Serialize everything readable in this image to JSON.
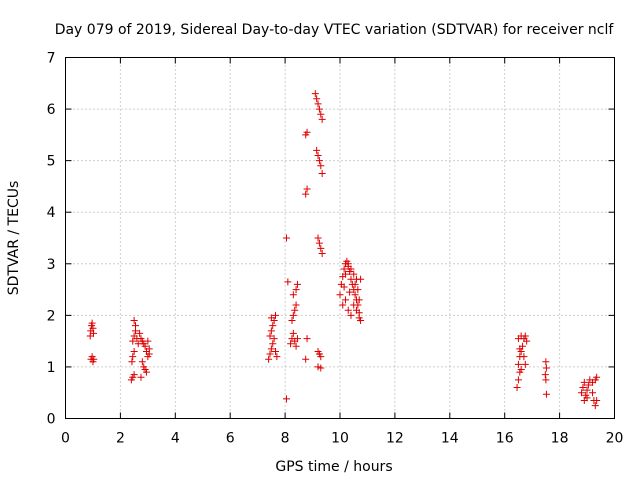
{
  "chart_data": {
    "type": "scatter",
    "title": "Day 079 of 2019, Sidereal Day-to-day VTEC variation (SDTVAR) for receiver nclf",
    "xlabel": "GPS time / hours",
    "ylabel": "SDTVAR / TECUs",
    "xlim": [
      0,
      20
    ],
    "ylim": [
      0,
      7
    ],
    "xticks": [
      "0",
      "2",
      "4",
      "6",
      "8",
      "10",
      "12",
      "14",
      "16",
      "18",
      "20"
    ],
    "yticks": [
      "0",
      "1",
      "2",
      "3",
      "4",
      "5",
      "6",
      "7"
    ],
    "grid": true,
    "marker": "+",
    "color": "#dd0000",
    "series": [
      {
        "name": "SDTVAR",
        "points": [
          [
            0.9,
            1.6
          ],
          [
            0.92,
            1.7
          ],
          [
            0.95,
            1.8
          ],
          [
            0.97,
            1.85
          ],
          [
            1.0,
            1.75
          ],
          [
            1.02,
            1.65
          ],
          [
            0.93,
            1.15
          ],
          [
            0.97,
            1.2
          ],
          [
            1.0,
            1.1
          ],
          [
            1.03,
            1.15
          ],
          [
            2.4,
            0.75
          ],
          [
            2.45,
            0.8
          ],
          [
            2.5,
            0.85
          ],
          [
            2.42,
            1.1
          ],
          [
            2.45,
            1.2
          ],
          [
            2.5,
            1.3
          ],
          [
            2.45,
            1.5
          ],
          [
            2.5,
            1.6
          ],
          [
            2.55,
            1.7
          ],
          [
            2.5,
            1.9
          ],
          [
            2.55,
            1.8
          ],
          [
            2.6,
            1.55
          ],
          [
            2.65,
            1.45
          ],
          [
            2.7,
            1.65
          ],
          [
            2.75,
            1.55
          ],
          [
            2.8,
            1.5
          ],
          [
            2.85,
            1.45
          ],
          [
            2.9,
            1.4
          ],
          [
            2.95,
            1.3
          ],
          [
            3.0,
            1.2
          ],
          [
            3.05,
            1.35
          ],
          [
            2.8,
            1.1
          ],
          [
            2.85,
            1.0
          ],
          [
            2.9,
            0.95
          ],
          [
            2.95,
            0.9
          ],
          [
            2.75,
            0.8
          ],
          [
            3.0,
            1.5
          ],
          [
            3.05,
            1.25
          ],
          [
            7.4,
            1.15
          ],
          [
            7.45,
            1.25
          ],
          [
            7.5,
            1.35
          ],
          [
            7.55,
            1.45
          ],
          [
            7.45,
            1.6
          ],
          [
            7.5,
            1.7
          ],
          [
            7.55,
            1.8
          ],
          [
            7.6,
            1.9
          ],
          [
            7.65,
            2.0
          ],
          [
            7.5,
            1.95
          ],
          [
            7.6,
            1.55
          ],
          [
            7.65,
            1.3
          ],
          [
            7.7,
            1.2
          ],
          [
            8.05,
            0.38
          ],
          [
            8.1,
            2.65
          ],
          [
            8.05,
            3.5
          ],
          [
            8.2,
            1.45
          ],
          [
            8.25,
            1.55
          ],
          [
            8.3,
            1.65
          ],
          [
            8.35,
            1.5
          ],
          [
            8.4,
            1.4
          ],
          [
            8.45,
            1.55
          ],
          [
            8.25,
            1.9
          ],
          [
            8.3,
            2.0
          ],
          [
            8.35,
            2.1
          ],
          [
            8.4,
            2.2
          ],
          [
            8.3,
            2.4
          ],
          [
            8.4,
            2.5
          ],
          [
            8.45,
            2.6
          ],
          [
            8.75,
            1.15
          ],
          [
            8.8,
            1.55
          ],
          [
            8.75,
            4.35
          ],
          [
            8.8,
            4.45
          ],
          [
            8.75,
            5.5
          ],
          [
            8.8,
            5.55
          ],
          [
            9.1,
            6.3
          ],
          [
            9.15,
            6.2
          ],
          [
            9.2,
            6.1
          ],
          [
            9.25,
            6.0
          ],
          [
            9.3,
            5.9
          ],
          [
            9.35,
            5.8
          ],
          [
            9.15,
            5.2
          ],
          [
            9.2,
            5.1
          ],
          [
            9.25,
            5.0
          ],
          [
            9.3,
            4.9
          ],
          [
            9.35,
            4.75
          ],
          [
            9.2,
            3.5
          ],
          [
            9.25,
            3.4
          ],
          [
            9.3,
            3.3
          ],
          [
            9.35,
            3.2
          ],
          [
            9.2,
            1.3
          ],
          [
            9.25,
            1.25
          ],
          [
            9.3,
            1.2
          ],
          [
            9.2,
            1.0
          ],
          [
            9.3,
            0.98
          ],
          [
            10.0,
            2.4
          ],
          [
            10.05,
            2.6
          ],
          [
            10.1,
            2.75
          ],
          [
            10.15,
            2.9
          ],
          [
            10.2,
            3.0
          ],
          [
            10.25,
            3.05
          ],
          [
            10.3,
            2.95
          ],
          [
            10.35,
            2.85
          ],
          [
            10.4,
            2.7
          ],
          [
            10.45,
            2.6
          ],
          [
            10.5,
            2.5
          ],
          [
            10.55,
            2.4
          ],
          [
            10.6,
            2.3
          ],
          [
            10.65,
            2.2
          ],
          [
            10.7,
            2.05
          ],
          [
            10.75,
            1.9
          ],
          [
            10.1,
            2.2
          ],
          [
            10.2,
            2.3
          ],
          [
            10.3,
            2.1
          ],
          [
            10.4,
            2.0
          ],
          [
            10.5,
            2.2
          ],
          [
            10.6,
            2.1
          ],
          [
            10.7,
            1.95
          ],
          [
            10.2,
            2.8
          ],
          [
            10.3,
            3.0
          ],
          [
            10.4,
            2.9
          ],
          [
            10.5,
            2.8
          ],
          [
            10.6,
            2.7
          ],
          [
            10.65,
            2.5
          ],
          [
            10.7,
            2.3
          ],
          [
            10.15,
            2.55
          ],
          [
            10.35,
            2.45
          ],
          [
            10.55,
            2.6
          ],
          [
            10.75,
            2.7
          ],
          [
            16.45,
            0.6
          ],
          [
            16.5,
            0.75
          ],
          [
            16.55,
            0.9
          ],
          [
            16.5,
            1.05
          ],
          [
            16.55,
            1.2
          ],
          [
            16.6,
            1.3
          ],
          [
            16.65,
            1.4
          ],
          [
            16.5,
            1.55
          ],
          [
            16.6,
            1.6
          ],
          [
            16.7,
            1.55
          ],
          [
            16.75,
            1.6
          ],
          [
            16.8,
            1.5
          ],
          [
            16.7,
            1.2
          ],
          [
            16.75,
            1.05
          ],
          [
            16.6,
            0.95
          ],
          [
            16.55,
            1.35
          ],
          [
            17.5,
            1.1
          ],
          [
            17.52,
            0.98
          ],
          [
            17.48,
            0.85
          ],
          [
            17.5,
            0.75
          ],
          [
            17.52,
            0.47
          ],
          [
            18.8,
            0.5
          ],
          [
            18.85,
            0.6
          ],
          [
            18.9,
            0.7
          ],
          [
            18.95,
            0.45
          ],
          [
            19.0,
            0.55
          ],
          [
            19.05,
            0.65
          ],
          [
            19.1,
            0.75
          ],
          [
            19.0,
            0.4
          ],
          [
            18.9,
            0.35
          ],
          [
            19.2,
            0.5
          ],
          [
            19.25,
            0.35
          ],
          [
            19.3,
            0.25
          ],
          [
            19.35,
            0.35
          ],
          [
            19.2,
            0.7
          ],
          [
            19.3,
            0.75
          ],
          [
            19.35,
            0.8
          ]
        ]
      }
    ]
  }
}
